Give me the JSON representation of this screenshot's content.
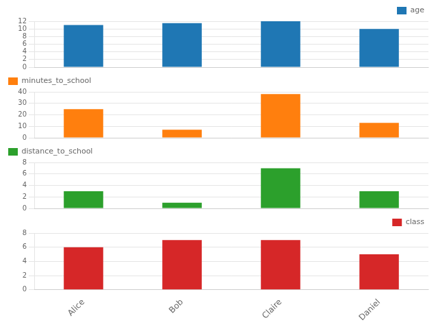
{
  "chart_data": [
    {
      "type": "bar",
      "categories": [
        "Alice",
        "Bob",
        "Claire",
        "Daniel"
      ],
      "series": [
        {
          "name": "age",
          "color": "#1f77b4",
          "values": [
            11,
            11.5,
            12,
            10
          ]
        }
      ],
      "ylim": [
        0,
        12
      ],
      "yticks": [
        0,
        2,
        4,
        6,
        8,
        10,
        12
      ],
      "legend": "upper right",
      "tick_labels": "y"
    },
    {
      "type": "bar",
      "categories": [
        "Alice",
        "Bob",
        "Claire",
        "Daniel"
      ],
      "series": [
        {
          "name": "minutes_to_school",
          "color": "#ff7f0e",
          "values": [
            25,
            7,
            38,
            13
          ]
        }
      ],
      "ylim": [
        0,
        40
      ],
      "yticks": [
        0,
        10,
        20,
        30,
        40
      ],
      "legend": "upper left",
      "tick_labels": "y"
    },
    {
      "type": "bar",
      "categories": [
        "Alice",
        "Bob",
        "Claire",
        "Daniel"
      ],
      "series": [
        {
          "name": "distance_to_school",
          "color": "#2ca02c",
          "values": [
            3,
            1,
            7,
            3
          ]
        }
      ],
      "ylim": [
        0,
        8
      ],
      "yticks": [
        0,
        2,
        4,
        6,
        8
      ],
      "legend": "upper left",
      "tick_labels": "y"
    },
    {
      "type": "bar",
      "categories": [
        "Alice",
        "Bob",
        "Claire",
        "Daniel"
      ],
      "series": [
        {
          "name": "class",
          "color": "#d62728",
          "values": [
            6,
            7,
            7,
            5
          ]
        }
      ],
      "ylim": [
        0,
        8
      ],
      "yticks": [
        0,
        2,
        4,
        6,
        8
      ],
      "legend": "upper right"
    }
  ]
}
